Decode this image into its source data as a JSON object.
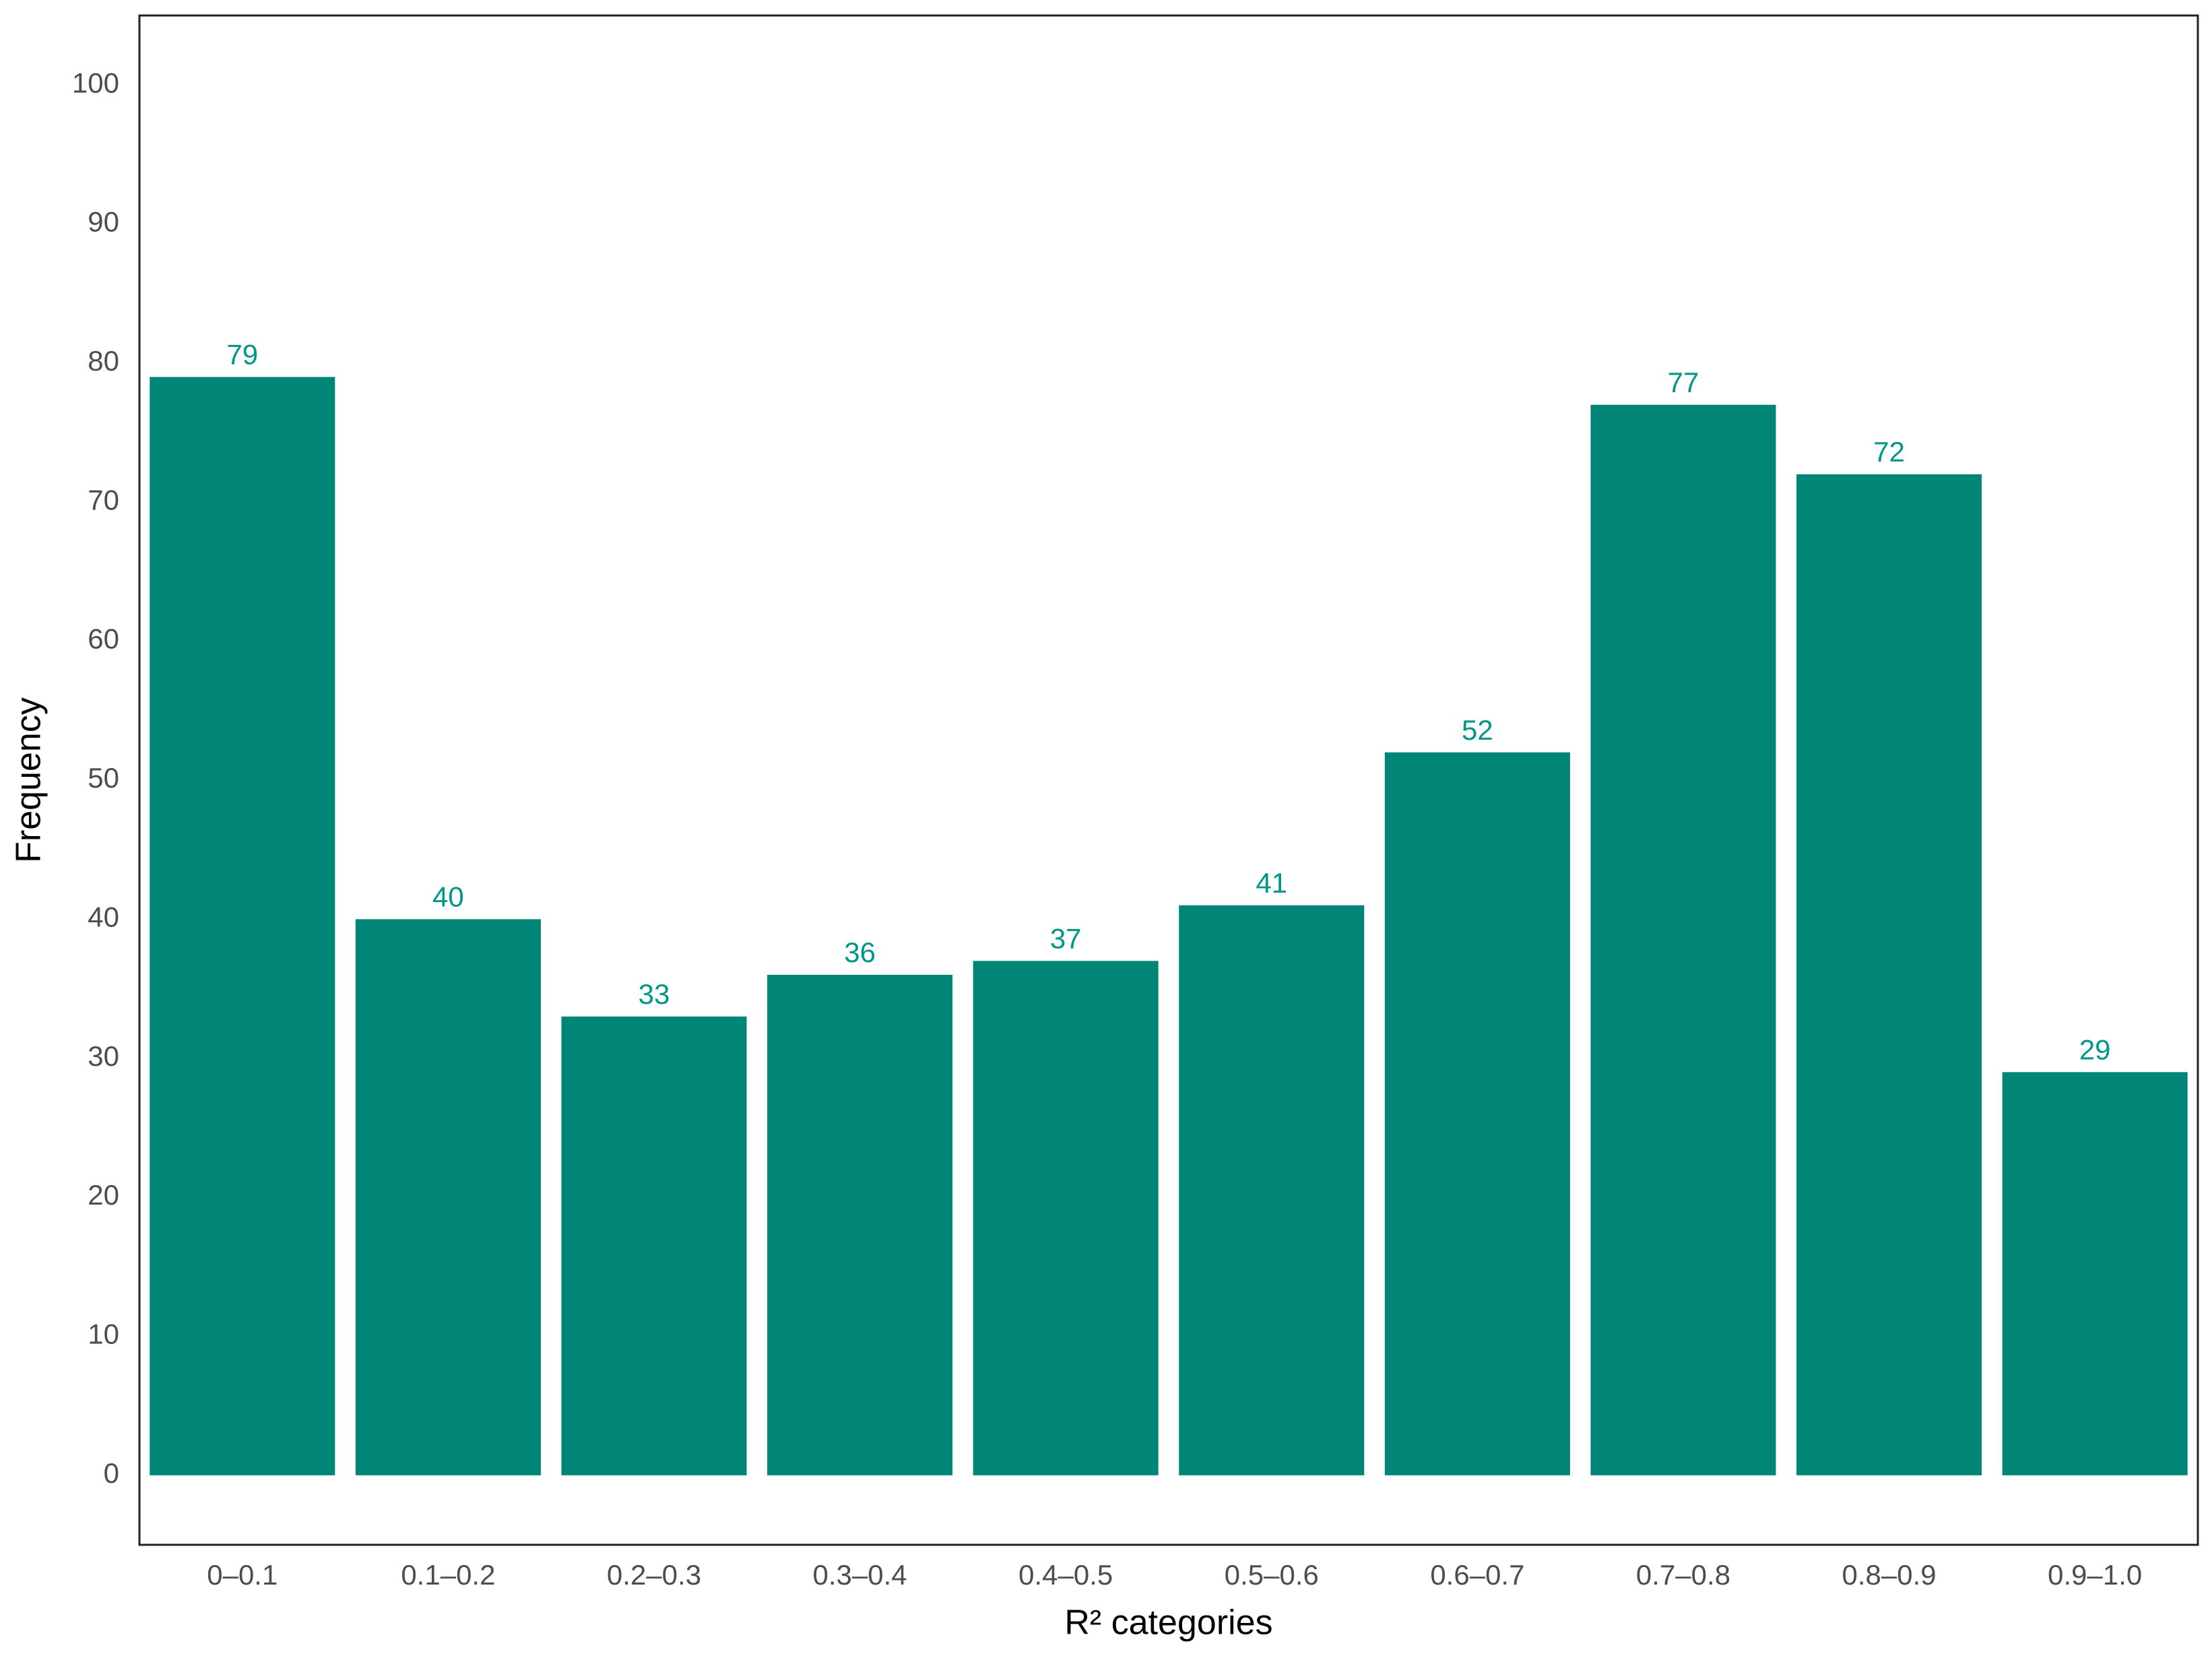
{
  "chart_data": {
    "type": "bar",
    "x_label": "R² categories",
    "y_label": "Frequency",
    "categories": [
      "0–0.1",
      "0.1–0.2",
      "0.2–0.3",
      "0.3–0.4",
      "0.4–0.5",
      "0.5–0.6",
      "0.6–0.7",
      "0.7–0.8",
      "0.8–0.9",
      "0.9–1.0"
    ],
    "values": [
      79,
      40,
      33,
      36,
      37,
      41,
      52,
      77,
      72,
      29
    ],
    "color": "#008577",
    "value_label_color": "#009688",
    "ylim": [
      -5,
      105
    ],
    "yticks": [
      0,
      10,
      20,
      30,
      40,
      50,
      60,
      70,
      80,
      90,
      100
    ],
    "grid": false
  }
}
